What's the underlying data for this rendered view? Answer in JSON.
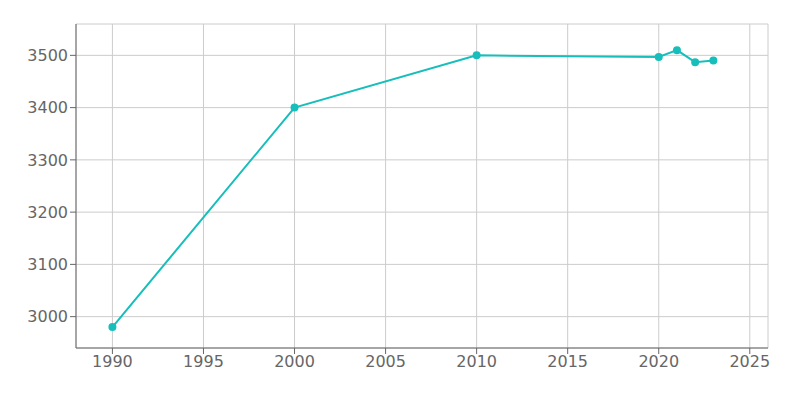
{
  "chart_data": {
    "type": "line",
    "x": [
      1990,
      2000,
      2010,
      2020,
      2021,
      2022,
      2023
    ],
    "values": [
      2980,
      3400,
      3500,
      3497,
      3510,
      3487,
      3490
    ],
    "color": "#17BEBB",
    "marker": "o",
    "xlim": [
      1988,
      2026
    ],
    "ylim": [
      2940,
      3560
    ],
    "xticks": [
      1990,
      1995,
      2000,
      2005,
      2010,
      2015,
      2020,
      2025
    ],
    "yticks": [
      3000,
      3100,
      3200,
      3300,
      3400,
      3500
    ],
    "grid": true
  }
}
